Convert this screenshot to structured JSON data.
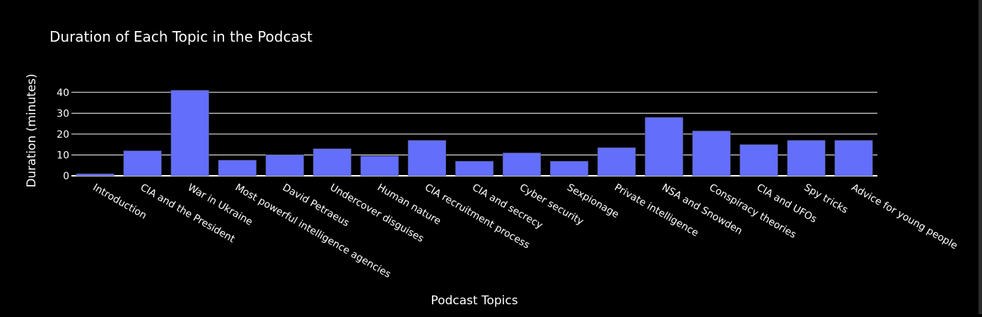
{
  "chart_data": {
    "type": "bar",
    "title": "Duration of Each Topic in the Podcast",
    "xlabel": "Podcast Topics",
    "ylabel": "Duration (minutes)",
    "ylim": [
      0,
      45
    ],
    "yticks": [
      0,
      10,
      20,
      30,
      40
    ],
    "grid": true,
    "legend": "none",
    "bar_color": "#636efa",
    "background_color": "#000000",
    "text_color": "#ffffff",
    "categories": [
      "Introduction",
      "CIA and the President",
      "War in Ukraine",
      "Most powerful intelligence agencies",
      "David Petraeus",
      "Undercover disguises",
      "Human nature",
      "CIA recruitment process",
      "CIA and secrecy",
      "Cyber security",
      "Sexpionage",
      "Private intelligence",
      "NSA and Snowden",
      "Conspiracy theories",
      "CIA and UFOs",
      "Spy tricks",
      "Advice for young people"
    ],
    "values": [
      1,
      12,
      41,
      7.5,
      10,
      13,
      9.5,
      17,
      7,
      11,
      7,
      13.5,
      28,
      21.5,
      15,
      17,
      17
    ]
  }
}
